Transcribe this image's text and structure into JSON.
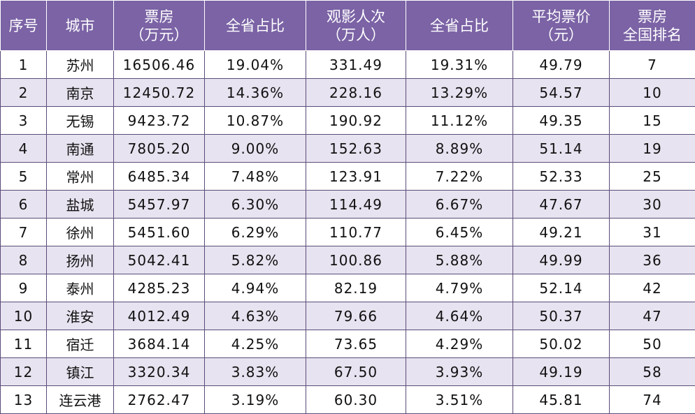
{
  "headers": [
    {
      "line1": "序号",
      "line2": ""
    },
    {
      "line1": "城市",
      "line2": ""
    },
    {
      "line1": "票房",
      "line2": "（万元）"
    },
    {
      "line1": "全省占比",
      "line2": ""
    },
    {
      "line1": "观影人次",
      "line2": "（万人）"
    },
    {
      "line1": "全省占比",
      "line2": ""
    },
    {
      "line1": "平均票价",
      "line2": "（元）"
    },
    {
      "line1": "票房",
      "line2": "全国排名"
    }
  ],
  "rows": [
    [
      "1",
      "苏州",
      "16506.46",
      "19.04%",
      "331.49",
      "19.31%",
      "49.79",
      "7"
    ],
    [
      "2",
      "南京",
      "12450.72",
      "14.36%",
      "228.16",
      "13.29%",
      "54.57",
      "10"
    ],
    [
      "3",
      "无锡",
      "9423.72",
      "10.87%",
      "190.92",
      "11.12%",
      "49.35",
      "15"
    ],
    [
      "4",
      "南通",
      "7805.20",
      "9.00%",
      "152.63",
      "8.89%",
      "51.14",
      "19"
    ],
    [
      "5",
      "常州",
      "6485.34",
      "7.48%",
      "123.91",
      "7.22%",
      "52.33",
      "25"
    ],
    [
      "6",
      "盐城",
      "5457.97",
      "6.30%",
      "114.49",
      "6.67%",
      "47.67",
      "30"
    ],
    [
      "7",
      "徐州",
      "5451.60",
      "6.29%",
      "110.77",
      "6.45%",
      "49.21",
      "31"
    ],
    [
      "8",
      "扬州",
      "5042.41",
      "5.82%",
      "100.86",
      "5.88%",
      "49.99",
      "36"
    ],
    [
      "9",
      "泰州",
      "4285.23",
      "4.94%",
      "82.19",
      "4.79%",
      "52.14",
      "42"
    ],
    [
      "10",
      "淮安",
      "4012.49",
      "4.63%",
      "79.66",
      "4.64%",
      "50.37",
      "47"
    ],
    [
      "11",
      "宿迁",
      "3684.14",
      "4.25%",
      "73.65",
      "4.29%",
      "50.02",
      "50"
    ],
    [
      "12",
      "镇江",
      "3320.34",
      "3.83%",
      "67.50",
      "3.93%",
      "49.19",
      "58"
    ],
    [
      "13",
      "连云港",
      "2762.47",
      "3.19%",
      "60.30",
      "3.51%",
      "45.81",
      "74"
    ]
  ],
  "colors": {
    "header_bg": "#7b63a5",
    "header_text": "#ffffff",
    "stripe": "#e7e3f0",
    "border": "#5a4c78"
  }
}
